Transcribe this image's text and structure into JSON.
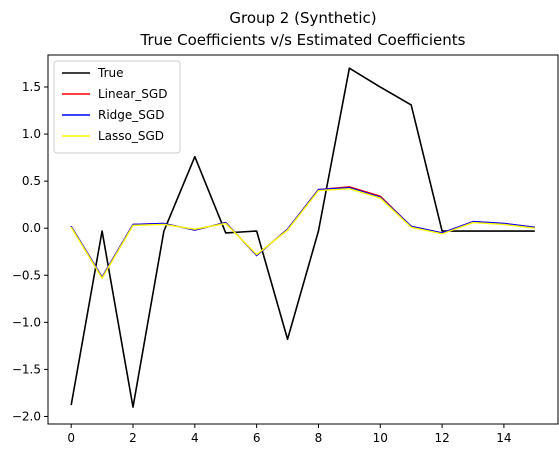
{
  "chart_data": {
    "type": "line",
    "title_line1": "Group 2 (Synthetic)",
    "title_line2": "True Coefficients v/s Estimated Coefficients",
    "xlabel": "",
    "ylabel": "",
    "x": [
      0,
      1,
      2,
      3,
      4,
      5,
      6,
      7,
      8,
      9,
      10,
      11,
      12,
      13,
      14,
      15
    ],
    "xlim": [
      -0.75,
      15.75
    ],
    "ylim": [
      -2.08,
      1.84
    ],
    "xticks": [
      0,
      2,
      4,
      6,
      8,
      10,
      12,
      14
    ],
    "yticks": [
      -2.0,
      -1.5,
      -1.0,
      -0.5,
      0.0,
      0.5,
      1.0,
      1.5
    ],
    "xtick_labels": [
      "0",
      "2",
      "4",
      "6",
      "8",
      "10",
      "12",
      "14"
    ],
    "ytick_labels": [
      "−2.0",
      "−1.5",
      "−1.0",
      "−0.5",
      "0.0",
      "0.5",
      "1.0",
      "1.5"
    ],
    "grid": false,
    "legend_position": "top-left",
    "series": [
      {
        "name": "True",
        "color": "#000000",
        "values": [
          -1.88,
          -0.03,
          -1.9,
          -0.03,
          0.76,
          -0.05,
          -0.03,
          -1.18,
          -0.03,
          1.7,
          1.5,
          1.31,
          -0.03,
          -0.03,
          -0.03,
          -0.03
        ]
      },
      {
        "name": "Linear_SGD",
        "color": "#ff0000",
        "values": [
          0.02,
          -0.52,
          0.04,
          0.05,
          -0.02,
          0.06,
          -0.29,
          -0.01,
          0.41,
          0.44,
          0.34,
          0.02,
          -0.05,
          0.07,
          0.05,
          0.01
        ]
      },
      {
        "name": "Ridge_SGD",
        "color": "#0000ff",
        "values": [
          0.02,
          -0.52,
          0.04,
          0.05,
          -0.02,
          0.06,
          -0.29,
          -0.01,
          0.41,
          0.43,
          0.33,
          0.02,
          -0.05,
          0.07,
          0.05,
          0.01
        ]
      },
      {
        "name": "Lasso_SGD",
        "color": "#ffff00",
        "values": [
          0.01,
          -0.53,
          0.03,
          0.04,
          -0.01,
          0.05,
          -0.28,
          -0.02,
          0.4,
          0.42,
          0.32,
          0.01,
          -0.06,
          0.06,
          0.04,
          0.0
        ]
      }
    ]
  }
}
